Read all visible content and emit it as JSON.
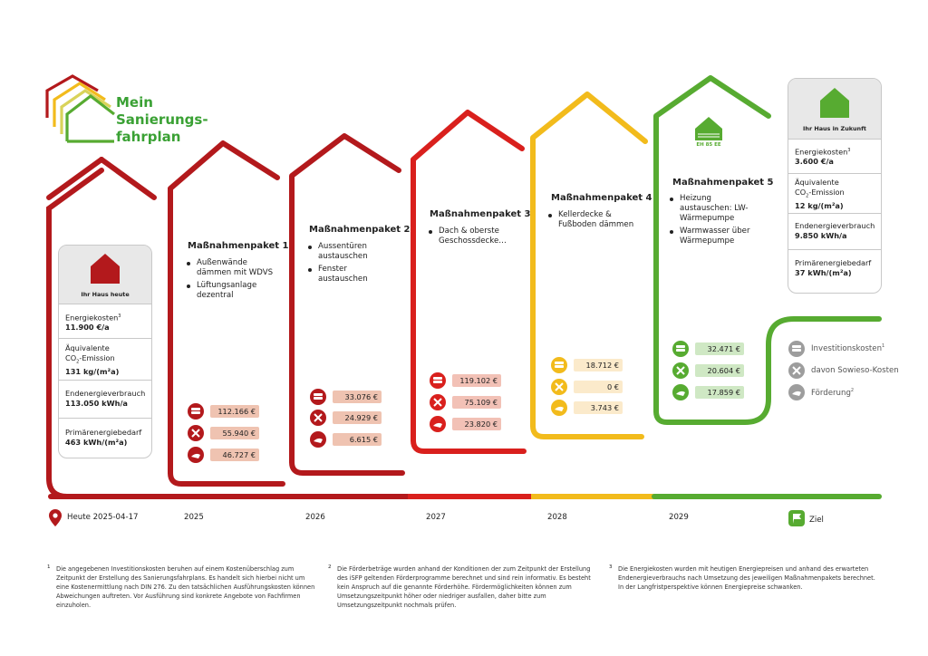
{
  "logo": {
    "title_line1": "Mein",
    "title_line2": "Sanierungs-",
    "title_line3": "fahrplan"
  },
  "colors": {
    "red": "#b3191c",
    "red_bright": "#d9201d",
    "yellow": "#f2bb1c",
    "green": "#57ab31",
    "gray": "#9d9d9d",
    "value_red": "#efc3b1",
    "value_yellow": "#fbeacb",
    "value_green": "#cfe8c4"
  },
  "current_house": {
    "caption": "Ihr Haus heute",
    "energy_label": "Energiekosten",
    "energy_sup": "3",
    "energy_value": "11.900 €/a",
    "co2_label1": "Äquivalente",
    "co2_label2": "CO",
    "co2_sub": "2",
    "co2_label3": "-Emission",
    "co2_value": "131 kg/(m²a)",
    "end_label": "Endenergieverbrauch",
    "end_value": "113.050 kWh/a",
    "prim_label": "Primärenergiebedarf",
    "prim_value": "463 kWh/(m²a)"
  },
  "future_house": {
    "caption": "Ihr Haus in Zukunft",
    "energy_label": "Energiekosten",
    "energy_sup": "3",
    "energy_value": "3.600 €/a",
    "co2_label1": "Äquivalente",
    "co2_label2": "CO",
    "co2_sub": "2",
    "co2_label3": "-Emission",
    "co2_value": "12 kg/(m²a)",
    "end_label": "Endenergieverbrauch",
    "end_value": "9.850 kWh/a",
    "prim_label": "Primärenergiebedarf",
    "prim_value": "37 kWh/(m²a)"
  },
  "packages": [
    {
      "title": "Maßnahmenpaket 1",
      "year": "2025",
      "color": "red",
      "items": [
        "Außenwände dämmen mit WDVS",
        "Lüftungsanlage dezentral"
      ],
      "investment": "112.166 €",
      "sowieso": "55.940 €",
      "funding": "46.727 €"
    },
    {
      "title": "Maßnahmenpaket 2",
      "year": "2026",
      "color": "red",
      "items": [
        "Aussentüren austauschen",
        "Fenster austauschen"
      ],
      "investment": "33.076 €",
      "sowieso": "24.929 €",
      "funding": "6.615 €"
    },
    {
      "title": "Maßnahmenpaket 3",
      "year": "2027",
      "color": "red",
      "items": [
        "Dach & oberste Geschossdecke…"
      ],
      "investment": "119.102 €",
      "sowieso": "75.109 €",
      "funding": "23.820 €"
    },
    {
      "title": "Maßnahmenpaket 4",
      "year": "2028",
      "color": "yellow",
      "items": [
        "Kellerdecke & Fußboden dämmen"
      ],
      "investment": "18.712 €",
      "sowieso": "0 €",
      "funding": "3.743 €"
    },
    {
      "title": "Maßnahmenpaket 5",
      "year": "2029",
      "color": "green",
      "badge": "EH 85 EE",
      "items": [
        "Heizung austauschen: LW-Wärmepumpe",
        "Warmwasser über Wärmepumpe"
      ],
      "investment": "32.471 €",
      "sowieso": "20.604 €",
      "funding": "17.859 €"
    }
  ],
  "timeline": {
    "start_label": "Heute 2025-04-17",
    "end_label": "Ziel"
  },
  "legend": {
    "investment": "Investitionskosten",
    "investment_sup": "1",
    "sowieso": "davon Sowieso-Kosten",
    "funding": "Förderung",
    "funding_sup": "2"
  },
  "footnotes": [
    {
      "num": "1",
      "text": "Die angegebenen Investitionskosten beruhen auf einem Kostenüberschlag zum Zeitpunkt der Erstellung des Sanierungsfahrplans. Es handelt sich hierbei nicht um eine Kostenermittlung nach DIN 276. Zu den tatsächlichen Ausführungskosten können Abweichungen auftreten. Vor Ausführung sind konkrete Angebote von Fachfirmen einzuholen."
    },
    {
      "num": "2",
      "text": "Die Förderbeträge wurden anhand der Konditionen der zum Zeitpunkt der Erstellung des iSFP geltenden Förderprogramme berechnet und sind rein informativ. Es besteht kein Anspruch auf die genannte Förderhöhe. Fördermöglichkeiten können zum Umsetzungszeitpunkt höher oder niedriger ausfallen, daher bitte zum Umsetzungszeitpunkt nochmals prüfen."
    },
    {
      "num": "3",
      "text": "Die Energiekosten wurden mit heutigen Energiepreisen und anhand des erwarteten Endenergieverbrauchs nach Umsetzung des jeweiligen Maßnahmenpakets berechnet. In der Langfristperspektive können Energiepreise schwanken."
    }
  ]
}
